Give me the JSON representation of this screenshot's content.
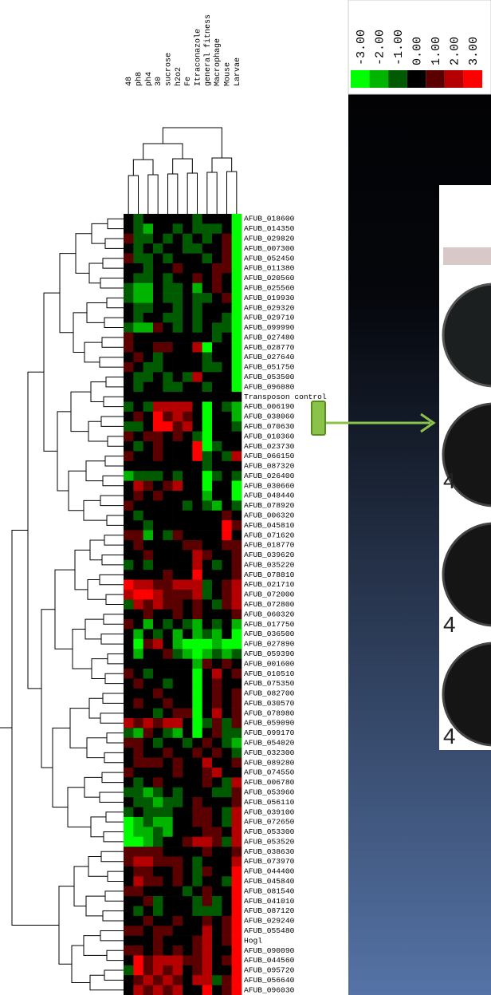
{
  "chart_data": {
    "type": "heatmap",
    "columns": [
      "48",
      "ph8",
      "ph4",
      "30",
      "sucrose",
      "h2o2",
      "Fe",
      "Itraconazole",
      "general fitness",
      "Macrophage",
      "Mouse",
      "Larvae"
    ],
    "rows": [
      "AFUB_018600",
      "AFUB_014350",
      "AFUB_029820",
      "AFUB_007300",
      "AFUB_052450",
      "AFUB_011380",
      "AFUB_020560",
      "AFUB_025560",
      "AFUB_019930",
      "AFUB_029320",
      "AFUB_029710",
      "AFUB_099990",
      "AFUB_027480",
      "AFUB_028770",
      "AFUB_027640",
      "AFUB_051750",
      "AFUB_053500",
      "AFUB_096080",
      "Transposon control",
      "AFUB_006190",
      "AFUB_038060",
      "AFUB_070630",
      "AFUB_010360",
      "AFUB_023730",
      "AFUB_066150",
      "AFUB_087320",
      "AFUB_026400",
      "AFUB_030660",
      "AFUB_048440",
      "AFUB_078920",
      "AFUB_006320",
      "AFUB_045810",
      "AFUB_071620",
      "AFUB_018770",
      "AFUB_039620",
      "AFUB_035220",
      "AFUB_078810",
      "AFUB_021710",
      "AFUB_072000",
      "AFUB_072800",
      "AFUB_060320",
      "AFUB_017750",
      "AFUB_036500",
      "AFUB_027890",
      "AFUB_059390",
      "AFUB_001600",
      "AFUB_010510",
      "AFUB_075350",
      "AFUB_082700",
      "AFUB_030570",
      "AFUB_078980",
      "AFUB_059090",
      "AFUB_099170",
      "AFUB_054020",
      "AFUB_032300",
      "AFUB_089280",
      "AFUB_074550",
      "AFUB_006780",
      "AFUB_053960",
      "AFUB_056110",
      "AFUB_039100",
      "AFUB_072650",
      "AFUB_053300",
      "AFUB_053520",
      "AFUB_038630",
      "AFUB_073970",
      "AFUB_044400",
      "AFUB_045840",
      "AFUB_081540",
      "AFUB_041010",
      "AFUB_087120",
      "AFUB_029240",
      "AFUB_055480",
      "Hogl",
      "AFUB_090090",
      "AFUB_044560",
      "AFUB_095720",
      "AFUB_056640",
      "AFUB_096030"
    ],
    "values": [
      [
        0,
        -1,
        0,
        0,
        0,
        0,
        0,
        -1,
        0,
        0,
        0,
        -3
      ],
      [
        0,
        -1,
        -2,
        0,
        0,
        -1,
        0,
        -1,
        -1,
        -1,
        0,
        -3
      ],
      [
        1,
        -1,
        -1,
        0,
        -1,
        0,
        -1,
        0,
        -1,
        0,
        1,
        -3
      ],
      [
        0,
        -1,
        0,
        -1,
        0,
        0,
        -1,
        -1,
        0,
        0,
        1,
        -3
      ],
      [
        1,
        -1,
        -1,
        0,
        -1,
        0,
        0,
        0,
        -1,
        0,
        1,
        -3
      ],
      [
        0,
        0,
        -1,
        0,
        0,
        1,
        0,
        0,
        0,
        1,
        1,
        -3
      ],
      [
        0,
        -1,
        -1,
        0,
        -1,
        0,
        0,
        1,
        0,
        1,
        0,
        -3
      ],
      [
        -1,
        -2,
        -2,
        0,
        -1,
        -1,
        0,
        -2,
        0,
        1,
        0,
        -3
      ],
      [
        -1,
        -2,
        -2,
        0,
        -1,
        -1,
        0,
        -1,
        -1,
        0,
        1,
        -3
      ],
      [
        0,
        -1,
        -1,
        0,
        0,
        -1,
        0,
        -1,
        0,
        0,
        0,
        -3
      ],
      [
        0,
        -1,
        0,
        0,
        -1,
        -1,
        0,
        -1,
        0,
        0,
        -1,
        -3
      ],
      [
        -1,
        -2,
        -2,
        1,
        0,
        -1,
        0,
        -1,
        0,
        -1,
        -1,
        -3
      ],
      [
        1,
        0,
        0,
        0,
        0,
        0,
        0,
        0,
        0,
        -1,
        0,
        -3
      ],
      [
        1,
        0,
        0,
        1,
        1,
        0,
        0,
        2,
        -3,
        0,
        0,
        -3
      ],
      [
        0,
        1,
        0,
        -1,
        0,
        0,
        0,
        0,
        -1,
        0,
        0,
        -3
      ],
      [
        1,
        0,
        -1,
        -1,
        0,
        0,
        0,
        0,
        -1,
        -1,
        0,
        -3
      ],
      [
        0,
        -1,
        -1,
        0,
        -1,
        0,
        -1,
        2,
        0,
        0,
        0,
        -3
      ],
      [
        0,
        -1,
        0,
        0,
        -1,
        -1,
        0,
        0,
        -1,
        0,
        0,
        -3
      ],
      [
        0,
        0,
        0,
        0,
        0,
        0,
        0,
        0,
        0,
        0,
        0,
        0
      ],
      [
        -1,
        0,
        -1,
        2,
        2,
        2,
        2,
        0,
        -3,
        0,
        -1,
        -2
      ],
      [
        0,
        1,
        0,
        3,
        1,
        2,
        1,
        0,
        -3,
        0,
        0,
        -2
      ],
      [
        -1,
        -1,
        0,
        3,
        3,
        1,
        2,
        0,
        -3,
        0,
        0,
        -1
      ],
      [
        1,
        0,
        1,
        1,
        0,
        1,
        0,
        -1,
        -3,
        0,
        0,
        0
      ],
      [
        0,
        -1,
        0,
        1,
        0,
        0,
        0,
        3,
        -3,
        -1,
        0,
        0
      ],
      [
        1,
        0,
        0,
        1,
        0,
        0,
        0,
        3,
        -1,
        0,
        -1,
        2
      ],
      [
        0,
        0,
        0,
        0,
        0,
        0,
        0,
        0,
        -1,
        0,
        0,
        0
      ],
      [
        -2,
        -1,
        -1,
        -1,
        0,
        -1,
        0,
        0,
        -3,
        -1,
        0,
        -1
      ],
      [
        0,
        2,
        1,
        0,
        1,
        2,
        0,
        0,
        -3,
        0,
        0,
        -3
      ],
      [
        0,
        1,
        0,
        1,
        0,
        0,
        0,
        0,
        -2,
        0,
        0,
        -3
      ],
      [
        1,
        0,
        0,
        0,
        0,
        0,
        -1,
        0,
        -1,
        -2,
        0,
        -1
      ],
      [
        0,
        -1,
        0,
        0,
        0,
        0,
        0,
        0,
        0,
        0,
        1,
        0
      ],
      [
        0,
        0,
        -1,
        0,
        0,
        0,
        0,
        0,
        0,
        0,
        3,
        1
      ],
      [
        1,
        1,
        -2,
        0,
        -1,
        1,
        0,
        0,
        0,
        0,
        3,
        0
      ],
      [
        0,
        1,
        0,
        0,
        0,
        0,
        1,
        1,
        0,
        0,
        1,
        1
      ],
      [
        0,
        0,
        1,
        0,
        0,
        0,
        0,
        2,
        1,
        0,
        0,
        1
      ],
      [
        -1,
        0,
        -1,
        0,
        0,
        0,
        0,
        2,
        0,
        -1,
        0,
        1
      ],
      [
        0,
        0,
        0,
        0,
        1,
        0,
        0,
        3,
        0,
        0,
        0,
        1
      ],
      [
        3,
        2,
        2,
        1,
        1,
        2,
        2,
        2,
        -1,
        0,
        1,
        2
      ],
      [
        2,
        3,
        3,
        2,
        1,
        1,
        1,
        2,
        -1,
        0,
        1,
        2
      ],
      [
        -1,
        2,
        1,
        2,
        1,
        1,
        0,
        1,
        0,
        -1,
        1,
        2
      ],
      [
        0,
        0,
        1,
        0,
        0,
        1,
        0,
        1,
        0,
        0,
        0,
        1
      ],
      [
        1,
        0,
        -2,
        0,
        -1,
        0,
        -1,
        -2,
        0,
        -1,
        0,
        -2
      ],
      [
        0,
        -2,
        0,
        -1,
        0,
        -2,
        0,
        -2,
        -1,
        -2,
        0,
        -3
      ],
      [
        0,
        -3,
        1,
        2,
        0,
        -2,
        -3,
        -3,
        -3,
        -2,
        -3,
        -3
      ],
      [
        0,
        -2,
        0,
        0,
        1,
        -1,
        -2,
        -3,
        -2,
        -1,
        -2,
        -1
      ],
      [
        0,
        0,
        0,
        0,
        0,
        0,
        0,
        -2,
        1,
        0,
        1,
        0
      ],
      [
        1,
        0,
        -1,
        0,
        0,
        0,
        0,
        -3,
        0,
        2,
        0,
        1
      ],
      [
        0,
        1,
        0,
        0,
        -1,
        0,
        0,
        -3,
        0,
        1,
        0,
        0
      ],
      [
        0,
        0,
        0,
        1,
        0,
        0,
        0,
        -3,
        0,
        1,
        0,
        1
      ],
      [
        0,
        1,
        0,
        0,
        1,
        0,
        0,
        -3,
        0,
        1,
        0,
        1
      ],
      [
        0,
        0,
        0,
        -1,
        0,
        1,
        1,
        -3,
        0,
        2,
        0,
        1
      ],
      [
        2,
        1,
        2,
        1,
        2,
        2,
        0,
        -3,
        -1,
        1,
        -1,
        1
      ],
      [
        -1,
        -2,
        1,
        0,
        -1,
        -2,
        0,
        -3,
        0,
        1,
        -1,
        -1
      ],
      [
        1,
        1,
        0,
        -1,
        0,
        0,
        -1,
        0,
        1,
        0,
        -1,
        -2
      ],
      [
        0,
        1,
        0,
        0,
        1,
        0,
        0,
        1,
        0,
        1,
        0,
        -1
      ],
      [
        0,
        1,
        1,
        1,
        0,
        1,
        0,
        0,
        2,
        0,
        0,
        1
      ],
      [
        1,
        0,
        0,
        0,
        0,
        1,
        0,
        0,
        1,
        2,
        0,
        0
      ],
      [
        0,
        -1,
        0,
        1,
        0,
        0,
        0,
        0,
        1,
        0,
        -1,
        2
      ],
      [
        -1,
        -1,
        -2,
        -1,
        0,
        -1,
        0,
        0,
        0,
        -1,
        -1,
        1
      ],
      [
        0,
        -1,
        -1,
        -2,
        -1,
        -1,
        0,
        1,
        0,
        0,
        0,
        1
      ],
      [
        -1,
        0,
        -1,
        -1,
        -1,
        0,
        0,
        1,
        1,
        0,
        -1,
        2
      ],
      [
        -3,
        -2,
        -1,
        -2,
        -2,
        0,
        0,
        1,
        1,
        0,
        -1,
        2
      ],
      [
        -3,
        -2,
        -2,
        -1,
        -2,
        0,
        0,
        0,
        1,
        1,
        0,
        2
      ],
      [
        -3,
        -3,
        -2,
        -1,
        0,
        0,
        1,
        2,
        2,
        1,
        -1,
        2
      ],
      [
        1,
        1,
        1,
        1,
        0,
        0,
        0,
        0,
        1,
        0,
        0,
        1
      ],
      [
        1,
        2,
        2,
        1,
        1,
        1,
        0,
        -1,
        0,
        0,
        0,
        2
      ],
      [
        0,
        1,
        1,
        0,
        0,
        1,
        0,
        -1,
        1,
        0,
        0,
        3
      ],
      [
        0,
        2,
        1,
        1,
        0,
        1,
        0,
        -1,
        0,
        0,
        -1,
        3
      ],
      [
        1,
        1,
        0,
        0,
        0,
        0,
        -1,
        0,
        1,
        0,
        0,
        3
      ],
      [
        0,
        0,
        1,
        -1,
        0,
        0,
        0,
        -1,
        1,
        -1,
        0,
        3
      ],
      [
        0,
        -1,
        0,
        -1,
        0,
        0,
        0,
        -1,
        -1,
        -1,
        0,
        3
      ],
      [
        0,
        0,
        1,
        0,
        0,
        1,
        0,
        0,
        1,
        0,
        1,
        3
      ],
      [
        1,
        1,
        0,
        1,
        1,
        0,
        0,
        0,
        2,
        0,
        1,
        3
      ],
      [
        0,
        0,
        0,
        1,
        0,
        0,
        0,
        1,
        2,
        0,
        1,
        3
      ],
      [
        1,
        1,
        0,
        1,
        0,
        1,
        0,
        1,
        2,
        0,
        0,
        3
      ],
      [
        0,
        3,
        1,
        2,
        2,
        2,
        1,
        1,
        2,
        0,
        1,
        3
      ],
      [
        -1,
        3,
        1,
        2,
        1,
        2,
        0,
        1,
        2,
        0,
        0,
        3
      ],
      [
        0,
        1,
        2,
        1,
        2,
        1,
        0,
        2,
        2,
        -1,
        1,
        3
      ],
      [
        0,
        2,
        1,
        2,
        1,
        2,
        0,
        0,
        3,
        0,
        1,
        3
      ]
    ],
    "colorbar_ticks": [
      {
        "value": -3,
        "label": "-3.00"
      },
      {
        "value": -2,
        "label": "-2.00"
      },
      {
        "value": -1,
        "label": "-1.00"
      },
      {
        "value": 0,
        "label": "0.00"
      },
      {
        "value": 1,
        "label": "1.00"
      },
      {
        "value": 2,
        "label": "2.00"
      },
      {
        "value": 3,
        "label": "3.00"
      }
    ],
    "colors": [
      "#00ff00",
      "#00b400",
      "#005a00",
      "#000000",
      "#5a0000",
      "#b40000",
      "#ff0000"
    ]
  },
  "photo": {
    "labels": [
      "4",
      "4",
      "4"
    ]
  }
}
